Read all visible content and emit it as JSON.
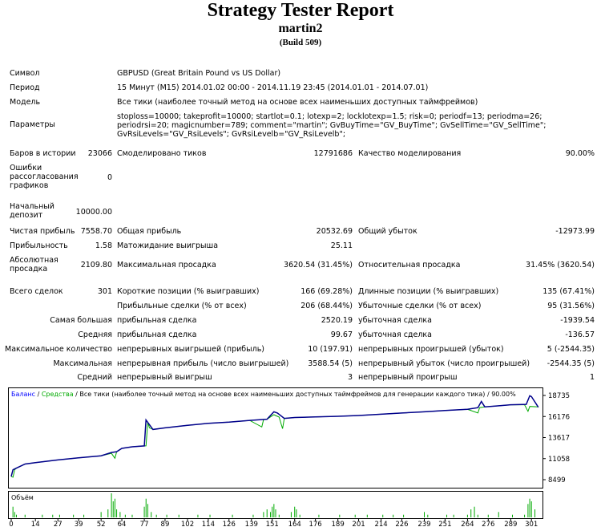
{
  "report": {
    "title": "Strategy Tester Report",
    "subtitle": "martin2",
    "build": "(Build 509)"
  },
  "info": {
    "symbol_label": "Символ",
    "symbol_value": "GBPUSD (Great Britain Pound vs US Dollar)",
    "period_label": "Период",
    "period_value": "15 Минут (M15) 2014.01.02 00:00 - 2014.11.19 23:45 (2014.01.01 - 2014.07.01)",
    "model_label": "Модель",
    "model_value": "Все тики (наиболее точный метод на основе всех наименьших доступных таймфреймов)",
    "params_label": "Параметры",
    "params_value": "stoploss=10000; takeprofit=10000; startlot=0.1; lotexp=2; locklotexp=1.5; risk=0; periodf=13; periodma=26; periodrsi=20; magicnumber=789; comment=\"martin\"; GvBuyTime=\"GV_BuyTime\"; GvSellTime=\"GV_SellTime\"; GvRsiLevels=\"GV_RsiLevels\"; GvRsiLevelb=\"GV_RsiLevelb\";"
  },
  "stats": {
    "bars_label": "Баров в истории",
    "bars_value": "23066",
    "ticks_label": "Смоделировано тиков",
    "ticks_value": "12791686",
    "quality_label": "Качество моделирования",
    "quality_value": "90.00%",
    "errors_label": "Ошибки рассогласования графиков",
    "errors_value": "0",
    "deposit_label": "Начальный депозит",
    "deposit_value": "10000.00",
    "net_label": "Чистая прибыль",
    "net_value": "7558.70",
    "gross_profit_label": "Общая прибыль",
    "gross_profit_value": "20532.69",
    "gross_loss_label": "Общий убыток",
    "gross_loss_value": "-12973.99",
    "pf_label": "Прибыльность",
    "pf_value": "1.58",
    "expect_label": "Матожидание выигрыша",
    "expect_value": "25.11",
    "abs_dd_label": "Абсолютная просадка",
    "abs_dd_value": "2109.80",
    "max_dd_label": "Максимальная просадка",
    "max_dd_value": "3620.54 (31.45%)",
    "rel_dd_label": "Относительная просадка",
    "rel_dd_value": "31.45% (3620.54)",
    "total_label": "Всего сделок",
    "total_value": "301",
    "short_label": "Короткие позиции (% выигравших)",
    "short_value": "166 (69.28%)",
    "long_label": "Длинные позиции (% выигравших)",
    "long_value": "135 (67.41%)",
    "win_label": "Прибыльные сделки (% от всех)",
    "win_value": "206 (68.44%)",
    "loss_label": "Убыточные сделки (% от всех)",
    "loss_value": "95 (31.56%)",
    "largest_label": "Самая большая",
    "largest_win_label": "прибыльная сделка",
    "largest_win_value": "2520.19",
    "largest_loss_label": "убыточная сделка",
    "largest_loss_value": "-1939.54",
    "avg_label": "Средняя",
    "avg_win_label": "прибыльная сделка",
    "avg_win_value": "99.67",
    "avg_loss_label": "убыточная сделка",
    "avg_loss_value": "-136.57",
    "maxcount_label": "Максимальное количество",
    "maxcount_win_label": "непрерывных выигрышей (прибыль)",
    "maxcount_win_value": "10 (197.91)",
    "maxcount_loss_label": "непрерывных проигрышей (убыток)",
    "maxcount_loss_value": "5 (-2544.35)",
    "maximal_label": "Максимальная",
    "maximal_win_label": "непрерывная прибыль (число выигрышей)",
    "maximal_win_value": "3588.54 (5)",
    "maximal_loss_label": "непрерывный убыток (число проигрышей)",
    "maximal_loss_value": "-2544.35 (5)",
    "avgcons_label": "Средний",
    "avgcons_win_label": "непрерывный выигрыш",
    "avgcons_win_value": "3",
    "avgcons_loss_label": "непрерывный проигрыш",
    "avgcons_loss_value": "1"
  },
  "chart_data": {
    "type": "line",
    "legend": {
      "balance": "Баланс",
      "sep1": " / ",
      "equity": "Средства",
      "rest": " / Все тики (наиболее точный метод на основе всех наименьших доступных таймфреймов для генерации каждого тика) / 90.00%"
    },
    "volume_label": "Объём",
    "colors": {
      "balance": "#00008b",
      "equity": "#00aa00",
      "volume": "#00aa00",
      "legend_balance": "#0000ff",
      "legend_equity": "#00aa00"
    },
    "y_ticks": [
      18735,
      16176,
      13617,
      11058,
      8499
    ],
    "ylim": [
      8499,
      18735
    ],
    "x_ticks": [
      0,
      14,
      27,
      39,
      52,
      64,
      77,
      89,
      102,
      114,
      126,
      139,
      151,
      164,
      176,
      189,
      201,
      214,
      226,
      239,
      251,
      264,
      276,
      289,
      301
    ],
    "xlim": [
      0,
      306
    ],
    "balance": [
      [
        0,
        8900
      ],
      [
        1,
        9700
      ],
      [
        3,
        9900
      ],
      [
        8,
        10400
      ],
      [
        14,
        10580
      ],
      [
        27,
        10900
      ],
      [
        39,
        11150
      ],
      [
        52,
        11400
      ],
      [
        58,
        11800
      ],
      [
        61,
        11900
      ],
      [
        64,
        12300
      ],
      [
        70,
        12500
      ],
      [
        77,
        12600
      ],
      [
        78,
        15750
      ],
      [
        82,
        14600
      ],
      [
        89,
        14800
      ],
      [
        102,
        15100
      ],
      [
        114,
        15350
      ],
      [
        126,
        15500
      ],
      [
        138,
        15700
      ],
      [
        148,
        15850
      ],
      [
        152,
        16750
      ],
      [
        154,
        16600
      ],
      [
        158,
        15950
      ],
      [
        164,
        16050
      ],
      [
        176,
        16120
      ],
      [
        189,
        16200
      ],
      [
        201,
        16300
      ],
      [
        214,
        16450
      ],
      [
        226,
        16600
      ],
      [
        239,
        16750
      ],
      [
        251,
        16900
      ],
      [
        264,
        17050
      ],
      [
        270,
        17250
      ],
      [
        272,
        18000
      ],
      [
        274,
        17350
      ],
      [
        280,
        17450
      ],
      [
        289,
        17600
      ],
      [
        298,
        17650
      ],
      [
        300,
        18700
      ],
      [
        301,
        18600
      ],
      [
        305,
        17300
      ]
    ],
    "equity": [
      [
        0,
        8900
      ],
      [
        1,
        8800
      ],
      [
        2,
        9700
      ],
      [
        3,
        9900
      ],
      [
        8,
        10400
      ],
      [
        14,
        10580
      ],
      [
        27,
        10900
      ],
      [
        39,
        11150
      ],
      [
        52,
        11400
      ],
      [
        58,
        11700
      ],
      [
        60,
        11100
      ],
      [
        61,
        11900
      ],
      [
        64,
        12300
      ],
      [
        70,
        12500
      ],
      [
        77,
        12600
      ],
      [
        78,
        12600
      ],
      [
        79,
        15500
      ],
      [
        80,
        14800
      ],
      [
        82,
        14600
      ],
      [
        89,
        14800
      ],
      [
        102,
        15100
      ],
      [
        114,
        15350
      ],
      [
        126,
        15500
      ],
      [
        138,
        15700
      ],
      [
        145,
        14900
      ],
      [
        146,
        15800
      ],
      [
        148,
        15850
      ],
      [
        152,
        16400
      ],
      [
        155,
        16100
      ],
      [
        157,
        14700
      ],
      [
        158,
        15950
      ],
      [
        164,
        16050
      ],
      [
        176,
        16120
      ],
      [
        189,
        16200
      ],
      [
        201,
        16300
      ],
      [
        214,
        16450
      ],
      [
        226,
        16600
      ],
      [
        239,
        16750
      ],
      [
        251,
        16900
      ],
      [
        264,
        17050
      ],
      [
        270,
        16600
      ],
      [
        271,
        17250
      ],
      [
        274,
        17350
      ],
      [
        280,
        17450
      ],
      [
        289,
        17600
      ],
      [
        297,
        17600
      ],
      [
        299,
        16800
      ],
      [
        300,
        17400
      ],
      [
        305,
        17350
      ]
    ],
    "volume": [
      [
        1,
        4
      ],
      [
        2,
        2
      ],
      [
        3,
        1
      ],
      [
        8,
        1
      ],
      [
        18,
        1
      ],
      [
        24,
        1
      ],
      [
        28,
        1
      ],
      [
        36,
        1
      ],
      [
        42,
        1
      ],
      [
        52,
        2
      ],
      [
        56,
        3
      ],
      [
        58,
        9
      ],
      [
        59,
        6
      ],
      [
        60,
        7
      ],
      [
        61,
        3
      ],
      [
        63,
        2
      ],
      [
        66,
        1
      ],
      [
        70,
        1
      ],
      [
        77,
        4
      ],
      [
        78,
        7
      ],
      [
        79,
        5
      ],
      [
        81,
        2
      ],
      [
        84,
        1
      ],
      [
        90,
        1
      ],
      [
        97,
        1
      ],
      [
        108,
        1
      ],
      [
        115,
        1
      ],
      [
        128,
        1
      ],
      [
        140,
        1
      ],
      [
        146,
        2
      ],
      [
        148,
        3
      ],
      [
        150,
        2
      ],
      [
        151,
        4
      ],
      [
        152,
        5
      ],
      [
        153,
        3
      ],
      [
        155,
        1
      ],
      [
        162,
        2
      ],
      [
        164,
        4
      ],
      [
        165,
        3
      ],
      [
        167,
        1
      ],
      [
        178,
        1
      ],
      [
        190,
        1
      ],
      [
        199,
        1
      ],
      [
        206,
        1
      ],
      [
        215,
        1
      ],
      [
        221,
        1
      ],
      [
        227,
        1
      ],
      [
        239,
        2
      ],
      [
        241,
        1
      ],
      [
        252,
        1
      ],
      [
        256,
        1
      ],
      [
        264,
        1
      ],
      [
        266,
        3
      ],
      [
        268,
        4
      ],
      [
        270,
        1
      ],
      [
        276,
        1
      ],
      [
        282,
        2
      ],
      [
        290,
        1
      ],
      [
        297,
        1
      ],
      [
        299,
        5
      ],
      [
        300,
        7
      ],
      [
        301,
        6
      ],
      [
        303,
        3
      ]
    ]
  }
}
